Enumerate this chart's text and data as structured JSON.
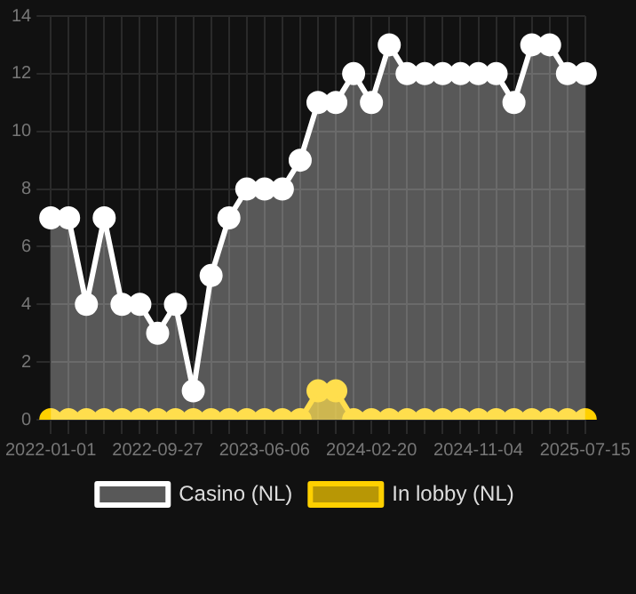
{
  "chart_data": {
    "type": "area",
    "categories": [
      "2022-01-01",
      null,
      null,
      null,
      null,
      null,
      "2022-09-27",
      null,
      null,
      null,
      null,
      null,
      "2023-06-06",
      null,
      null,
      null,
      null,
      null,
      "2024-02-20",
      null,
      null,
      null,
      null,
      null,
      "2024-11-04",
      null,
      null,
      null,
      null,
      null,
      "2025-07-15"
    ],
    "series": [
      {
        "name": "In lobby (NL)",
        "color": "#ffd000",
        "values": [
          0,
          0,
          0,
          0,
          0,
          0,
          0,
          0,
          0,
          0,
          0,
          0,
          0,
          0,
          0,
          1,
          1,
          0,
          0,
          0,
          0,
          0,
          0,
          0,
          0,
          0,
          0,
          0,
          0,
          0,
          0
        ]
      },
      {
        "name": "Casino (NL)",
        "color": "#ffffff",
        "values": [
          7,
          7,
          4,
          7,
          4,
          4,
          3,
          4,
          1,
          5,
          7,
          8,
          8,
          8,
          9,
          11,
          11,
          12,
          11,
          13,
          12,
          12,
          12,
          12,
          12,
          12,
          11,
          13,
          13,
          12,
          12
        ]
      }
    ],
    "ylim": [
      0,
      14
    ],
    "yticks": [
      0,
      2,
      4,
      6,
      8,
      10,
      12,
      14
    ],
    "grid": true,
    "legend": "bottom",
    "marker": "circle"
  }
}
